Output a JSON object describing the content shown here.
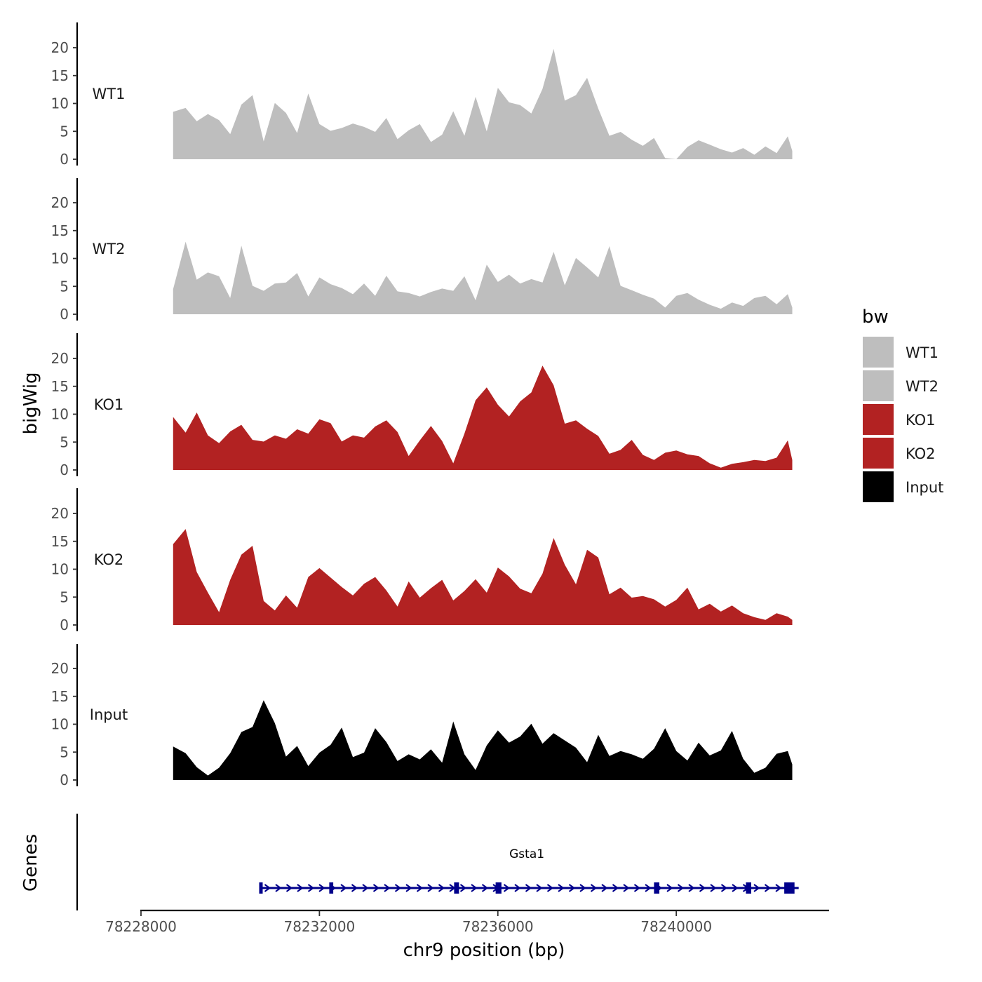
{
  "chart_data": {
    "type": "area",
    "title": "",
    "ylabel": "bigWig",
    "xlabel": "chr9 position (bp)",
    "genes_label": "Genes",
    "xlim": [
      78228000,
      78243000
    ],
    "ylim": [
      0,
      24
    ],
    "y_ticks": [
      "0",
      "5",
      "10",
      "15",
      "20"
    ],
    "x_ticks": [
      {
        "value": 78228000,
        "label": "78228000"
      },
      {
        "value": 78232000,
        "label": "78232000"
      },
      {
        "value": 78236000,
        "label": "78236000"
      },
      {
        "value": 78240000,
        "label": "78240000"
      }
    ],
    "legend": {
      "title": "bw",
      "position": "right",
      "entries": [
        {
          "label": "WT1",
          "color": "#bebebe"
        },
        {
          "label": "WT2",
          "color": "#bebebe"
        },
        {
          "label": "KO1",
          "color": "#b22222"
        },
        {
          "label": "KO2",
          "color": "#b22222"
        },
        {
          "label": "Input",
          "color": "#000000"
        }
      ]
    },
    "x": [
      78228720,
      78229000,
      78229250,
      78229500,
      78229750,
      78230000,
      78230250,
      78230500,
      78230750,
      78231000,
      78231250,
      78231500,
      78231750,
      78232000,
      78232250,
      78232500,
      78232750,
      78233000,
      78233250,
      78233500,
      78233750,
      78234000,
      78234250,
      78234500,
      78234750,
      78235000,
      78235250,
      78235500,
      78235750,
      78236000,
      78236250,
      78236500,
      78236750,
      78237000,
      78237250,
      78237500,
      78237750,
      78238000,
      78238250,
      78238500,
      78238750,
      78239000,
      78239250,
      78239500,
      78239750,
      78240000,
      78240250,
      78240500,
      78240750,
      78241000,
      78241250,
      78241500,
      78241750,
      78242000,
      78242250,
      78242500,
      78242600
    ],
    "series": [
      {
        "name": "WT1",
        "color": "#bebebe",
        "values": [
          8.5,
          9.2,
          6.8,
          8.1,
          7.0,
          4.5,
          9.8,
          11.5,
          3.2,
          10.1,
          8.3,
          4.7,
          11.8,
          6.3,
          5.1,
          5.6,
          6.4,
          5.8,
          4.9,
          7.4,
          3.6,
          5.2,
          6.3,
          3.1,
          4.4,
          8.6,
          4.2,
          11.2,
          5.0,
          12.8,
          10.2,
          9.7,
          8.2,
          12.6,
          19.8,
          10.5,
          11.5,
          14.6,
          9.1,
          4.2,
          4.9,
          3.5,
          2.4,
          3.8,
          0.2,
          0.0,
          2.2,
          3.4,
          2.6,
          1.8,
          1.2,
          2.0,
          0.8,
          2.3,
          1.1,
          4.1,
          1.5
        ]
      },
      {
        "name": "WT2",
        "color": "#bebebe",
        "values": [
          4.5,
          13.0,
          6.2,
          7.5,
          6.8,
          2.9,
          12.3,
          5.1,
          4.2,
          5.5,
          5.7,
          7.4,
          3.2,
          6.6,
          5.4,
          4.7,
          3.6,
          5.5,
          3.3,
          6.9,
          4.1,
          3.8,
          3.2,
          4.0,
          4.6,
          4.2,
          6.8,
          2.5,
          8.9,
          5.8,
          7.1,
          5.5,
          6.3,
          5.7,
          11.2,
          5.2,
          10.1,
          8.4,
          6.6,
          12.2,
          5.1,
          4.3,
          3.5,
          2.8,
          1.2,
          3.3,
          3.8,
          2.6,
          1.7,
          1.0,
          2.1,
          1.5,
          2.9,
          3.3,
          1.8,
          3.6,
          1.2
        ]
      },
      {
        "name": "KO1",
        "color": "#b22222",
        "values": [
          9.5,
          6.7,
          10.3,
          6.2,
          4.8,
          6.9,
          8.1,
          5.4,
          5.1,
          6.2,
          5.6,
          7.3,
          6.5,
          9.1,
          8.4,
          5.1,
          6.2,
          5.8,
          7.8,
          8.9,
          6.8,
          2.5,
          5.3,
          7.9,
          5.2,
          1.2,
          6.5,
          12.5,
          14.8,
          11.7,
          9.6,
          12.3,
          13.9,
          18.7,
          15.2,
          8.3,
          8.9,
          7.4,
          6.1,
          2.9,
          3.6,
          5.4,
          2.7,
          1.8,
          3.1,
          3.5,
          2.8,
          2.5,
          1.2,
          0.4,
          1.1,
          1.4,
          1.8,
          1.6,
          2.2,
          5.3,
          1.8
        ]
      },
      {
        "name": "KO2",
        "color": "#b22222",
        "values": [
          14.5,
          17.2,
          9.5,
          5.8,
          2.3,
          8.1,
          12.6,
          14.2,
          4.3,
          2.6,
          5.3,
          3.1,
          8.6,
          10.2,
          8.5,
          6.8,
          5.3,
          7.4,
          8.6,
          6.2,
          3.3,
          7.8,
          4.9,
          6.6,
          8.1,
          4.4,
          6.1,
          8.2,
          5.8,
          10.3,
          8.7,
          6.5,
          5.7,
          9.2,
          15.6,
          10.8,
          7.3,
          13.5,
          12.1,
          5.5,
          6.7,
          4.9,
          5.2,
          4.6,
          3.3,
          4.5,
          6.7,
          2.8,
          3.8,
          2.4,
          3.5,
          2.1,
          1.4,
          0.9,
          2.1,
          1.5,
          0.9
        ]
      },
      {
        "name": "Input",
        "color": "#000000",
        "values": [
          6.0,
          4.8,
          2.3,
          0.8,
          2.2,
          4.8,
          8.6,
          9.5,
          14.3,
          10.2,
          4.2,
          6.1,
          2.5,
          4.9,
          6.3,
          9.4,
          4.1,
          4.9,
          9.3,
          6.8,
          3.4,
          4.6,
          3.7,
          5.5,
          3.1,
          10.5,
          4.6,
          1.8,
          6.2,
          8.9,
          6.7,
          7.8,
          10.1,
          6.5,
          8.4,
          7.1,
          5.8,
          3.2,
          8.1,
          4.3,
          5.2,
          4.6,
          3.8,
          5.6,
          9.3,
          5.2,
          3.5,
          6.7,
          4.4,
          5.3,
          8.8,
          3.8,
          1.3,
          2.2,
          4.7,
          5.2,
          2.8
        ]
      }
    ],
    "gene": {
      "name": "Gsta1",
      "color": "#00008b",
      "strand": "+",
      "start": 78230650,
      "end": 78242650,
      "exons": [
        [
          78230650,
          78230720
        ],
        [
          78232220,
          78232310
        ],
        [
          78235020,
          78235130
        ],
        [
          78235950,
          78236080
        ],
        [
          78239500,
          78239620
        ],
        [
          78241560,
          78241680
        ],
        [
          78242420,
          78242650
        ]
      ]
    }
  }
}
